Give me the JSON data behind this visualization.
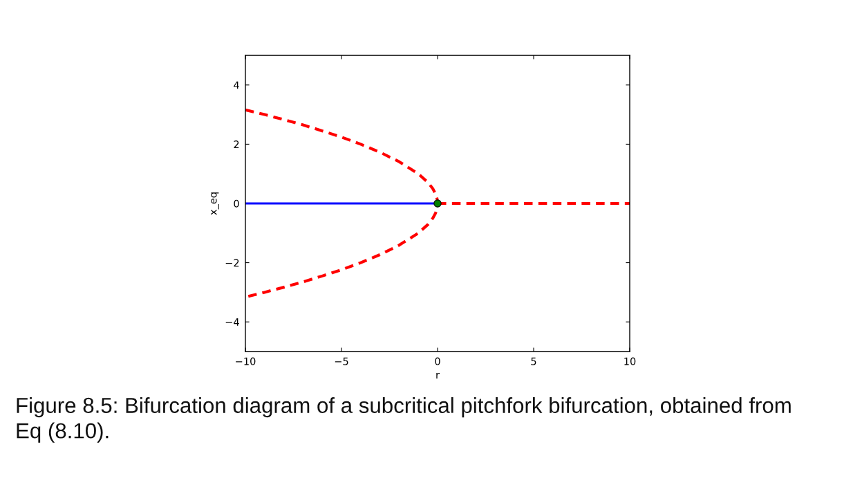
{
  "chart_data": {
    "type": "line",
    "xlabel": "r",
    "ylabel": "x_eq",
    "xlim": [
      -10,
      10
    ],
    "ylim": [
      -5,
      5
    ],
    "xticks": [
      -10,
      -5,
      0,
      5,
      10
    ],
    "yticks": [
      -4,
      -2,
      0,
      2,
      4
    ],
    "grid": false,
    "series": [
      {
        "color": "#0000ff",
        "line_style": "solid",
        "x": [
          -10,
          0
        ],
        "values": [
          0,
          0
        ]
      },
      {
        "color": "#ff0000",
        "line_style": "dashed",
        "x": [
          -10,
          -9,
          -8,
          -7,
          -6,
          -5,
          -4,
          -3,
          -2,
          -1,
          -0.5,
          -0.25,
          -0.1,
          -0.02,
          0,
          -0.02,
          -0.1,
          -0.25,
          -0.5,
          -1,
          -2,
          -3,
          -4,
          -5,
          -6,
          -7,
          -8,
          -9,
          -10
        ],
        "values": [
          3.16,
          3.0,
          2.83,
          2.65,
          2.45,
          2.24,
          2.0,
          1.73,
          1.41,
          1.0,
          0.71,
          0.5,
          0.32,
          0.14,
          0,
          -0.14,
          -0.32,
          -0.5,
          -0.71,
          -1.0,
          -1.41,
          -1.73,
          -2.0,
          -2.24,
          -2.45,
          -2.65,
          -2.83,
          -3.0,
          -3.16
        ]
      },
      {
        "color": "#ff0000",
        "line_style": "dashed",
        "x": [
          0,
          10
        ],
        "values": [
          0,
          0
        ]
      },
      {
        "type": "scatter",
        "color": "#008000",
        "marker": "circle",
        "x": [
          0
        ],
        "values": [
          0
        ]
      }
    ],
    "annotations": [
      "Figure 8.5: Bifurcation diagram of a subcritical pitchfork bifurcation, obtained from\nEq (8.10)."
    ]
  }
}
